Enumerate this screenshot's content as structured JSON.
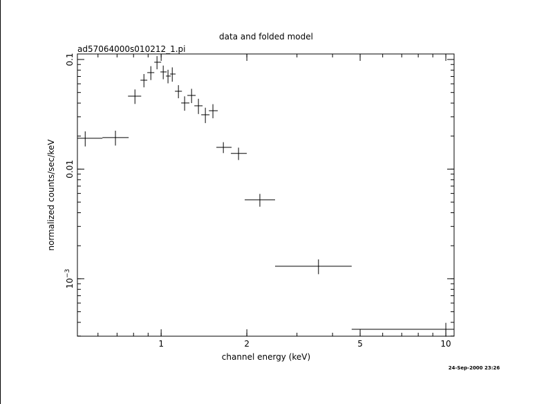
{
  "chart_data": {
    "type": "errorbar",
    "title": "data and folded model",
    "subtitle": "ad57064000s010212_1.pi",
    "xlabel": "channel energy (keV)",
    "ylabel": "normalized counts/sec/keV",
    "timestamp": "24-Sep-2000 23:26",
    "xscale": "log",
    "yscale": "log",
    "color": "#000000",
    "xlim": [
      0.508,
      10.69
    ],
    "ylim": [
      0.000299,
      0.1123
    ],
    "xticks": [
      1,
      2,
      5,
      10
    ],
    "yticks": [
      {
        "value": 0.1,
        "label": "0.1"
      },
      {
        "value": 0.01,
        "label": "0.01"
      },
      {
        "value": 0.001,
        "label": "10",
        "exponent": "−3"
      }
    ],
    "x": [
      0.541,
      0.691,
      0.809,
      0.87,
      0.92,
      0.967,
      1.017,
      1.057,
      1.094,
      1.15,
      1.209,
      1.279,
      1.352,
      1.43,
      1.52,
      1.654,
      1.87,
      2.222,
      3.57,
      10.0
    ],
    "x_low": [
      0.508,
      0.622,
      0.765,
      0.846,
      0.894,
      0.946,
      0.994,
      1.04,
      1.075,
      1.118,
      1.176,
      1.236,
      1.308,
      1.383,
      1.471,
      1.563,
      1.758,
      1.966,
      2.513,
      4.67
    ],
    "x_high": [
      0.622,
      0.769,
      0.851,
      0.894,
      0.946,
      1.0,
      1.046,
      1.081,
      1.124,
      1.183,
      1.257,
      1.322,
      1.398,
      1.479,
      1.581,
      1.768,
      1.999,
      2.513,
      4.67,
      10.69
    ],
    "values": [
      0.0191,
      0.0194,
      0.0463,
      0.0647,
      0.0759,
      0.0944,
      0.077,
      0.0706,
      0.0737,
      0.0513,
      0.0401,
      0.047,
      0.0378,
      0.0313,
      0.0341,
      0.0158,
      0.0139,
      0.00524,
      0.0013,
      0.000346
    ],
    "yerr": [
      0.003,
      0.003,
      0.007,
      0.009,
      0.011,
      0.013,
      0.011,
      0.01,
      0.011,
      0.007,
      0.006,
      0.007,
      0.006,
      0.005,
      0.005,
      0.0018,
      0.0018,
      0.0007,
      0.0002,
      5e-05
    ]
  }
}
